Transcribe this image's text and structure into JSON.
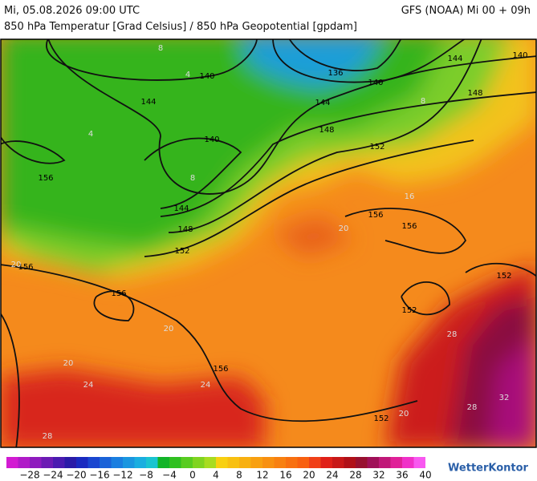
{
  "header": {
    "date": "Mi, 05.08.2026 09:00 UTC",
    "model": "GFS (NOAA) Mi 00 + 09h",
    "subtitle": "850 hPa Temperatur [Grad Celsius] / 850 hPa Geopotential [gpdam]"
  },
  "map": {
    "geopotential_labels": [
      "140",
      "136",
      "140",
      "144",
      "140",
      "144",
      "144",
      "148",
      "148",
      "140",
      "152",
      "156",
      "144",
      "148",
      "152",
      "156",
      "156",
      "156",
      "156",
      "152",
      "152",
      "156",
      "152"
    ],
    "temperature_labels": [
      "8",
      "4",
      "8",
      "4",
      "8",
      "16",
      "20",
      "20",
      "20",
      "24",
      "24",
      "28",
      "28",
      "32",
      "28",
      "20",
      "20"
    ]
  },
  "colorbar": {
    "labels": [
      "−28",
      "−24",
      "−20",
      "−16",
      "−12",
      "−8",
      "−4",
      "0",
      "4",
      "8",
      "12",
      "16",
      "20",
      "24",
      "28",
      "32",
      "36",
      "40"
    ]
  },
  "footer": {
    "logo": "WetterKontor"
  }
}
